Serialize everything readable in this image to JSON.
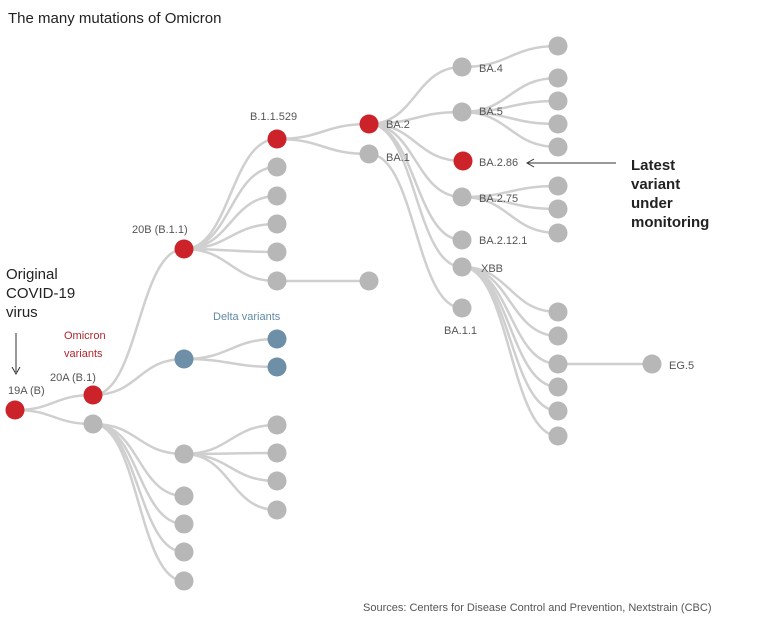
{
  "title": "The many mutations of Omicron",
  "colors": {
    "red": "#cc2229",
    "grey": "#b7b7b7",
    "blue": "#6d8fa8",
    "edge": "#cfcfcf"
  },
  "labels": {
    "root": "19A (B)",
    "n20a": "20A (B.1)",
    "n20b": "20B (B.1.1)",
    "b11529": "B.1.1.529",
    "ba2": "BA.2",
    "ba1": "BA.1",
    "ba4": "BA.4",
    "ba5": "BA.5",
    "ba286": "BA.2.86",
    "ba275": "BA.2.75",
    "ba2121": "BA.2.12.1",
    "xbb": "XBB",
    "ba11": "BA.1.1",
    "eg5": "EG.5"
  },
  "annotations": {
    "original": [
      "Original",
      "COVID-19",
      "virus"
    ],
    "omicron": [
      "Omicron",
      "variants"
    ],
    "delta": "Delta variants",
    "latest": [
      "Latest",
      "variant",
      "under",
      "monitoring"
    ]
  },
  "source": "Sources: Centers for Disease Control and Prevention, Nextstrain (CBC)"
}
